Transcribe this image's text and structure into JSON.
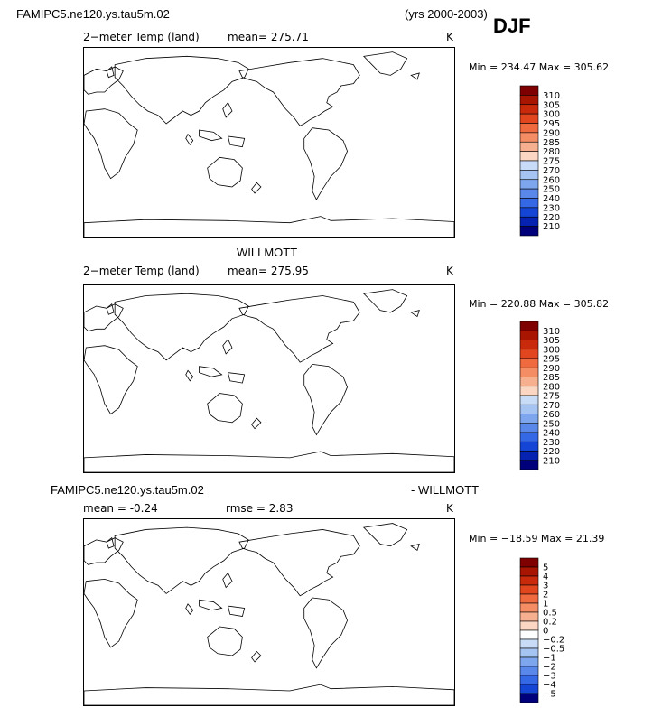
{
  "header": {
    "case_name": "FAMIPC5.ne120.ys.tau5m.02",
    "years": "(yrs 2000-2003)",
    "season": "DJF"
  },
  "panels": [
    {
      "title": "",
      "field_label": "2−meter Temp (land)",
      "stat_text": "mean=  275.71",
      "units": "K",
      "minmax": "Min = 234.47 Max = 305.62"
    },
    {
      "title": "WILLMOTT",
      "field_label": "2−meter Temp (land)",
      "stat_text": "mean=  275.95",
      "units": "K",
      "minmax": "Min = 220.88 Max = 305.82"
    },
    {
      "title_left": "FAMIPC5.ne120.ys.tau5m.02",
      "title_right": "- WILLMOTT",
      "stat_text": "mean =   -0.24",
      "rmse_text": "rmse =    2.83",
      "units": "K",
      "minmax": "Min = −18.59 Max =   21.39"
    }
  ],
  "chart_data": [
    {
      "type": "heatmap",
      "title": "2-meter Temp (land) FAMIPC5.ne120.ys.tau5m.02 DJF",
      "mean": 275.71,
      "min": 234.47,
      "max": 305.62,
      "units": "K",
      "colorbar": {
        "levels": [
          "310",
          "305",
          "300",
          "295",
          "290",
          "285",
          "280",
          "275",
          "270",
          "260",
          "250",
          "240",
          "230",
          "220",
          "210"
        ],
        "colors": [
          "#7f0000",
          "#a81500",
          "#c92a0c",
          "#e2461f",
          "#ef6a3e",
          "#f48c64",
          "#f7b08f",
          "#fbd6c2",
          "#c8dcf7",
          "#a6c4f2",
          "#7ea6ee",
          "#5a88ea",
          "#3468e4",
          "#1445d4",
          "#0522b0",
          "#00007a"
        ]
      }
    },
    {
      "type": "heatmap",
      "title": "2-meter Temp (land) WILLMOTT DJF",
      "mean": 275.95,
      "min": 220.88,
      "max": 305.82,
      "units": "K",
      "colorbar": {
        "levels": [
          "310",
          "305",
          "300",
          "295",
          "290",
          "285",
          "280",
          "275",
          "270",
          "260",
          "250",
          "240",
          "230",
          "220",
          "210"
        ],
        "colors": [
          "#7f0000",
          "#a81500",
          "#c92a0c",
          "#e2461f",
          "#ef6a3e",
          "#f48c64",
          "#f7b08f",
          "#fbd6c2",
          "#c8dcf7",
          "#a6c4f2",
          "#7ea6ee",
          "#5a88ea",
          "#3468e4",
          "#1445d4",
          "#0522b0",
          "#00007a"
        ]
      }
    },
    {
      "type": "heatmap",
      "title": "FAMIPC5.ne120.ys.tau5m.02 - WILLMOTT",
      "mean": -0.24,
      "rmse": 2.83,
      "min": -18.59,
      "max": 21.39,
      "units": "K",
      "colorbar": {
        "levels": [
          "5",
          "4",
          "3",
          "2",
          "1",
          "0.5",
          "0.2",
          "0",
          "−0.2",
          "−0.5",
          "−1",
          "−2",
          "−3",
          "−4",
          "−5"
        ],
        "colors": [
          "#7f0000",
          "#a81500",
          "#c92a0c",
          "#e2461f",
          "#ef6a3e",
          "#f48c64",
          "#f7b08f",
          "#fbd6c2",
          "#ffffff",
          "#c8dcf7",
          "#a6c4f2",
          "#7ea6ee",
          "#5a88ea",
          "#3468e4",
          "#1445d4",
          "#00007a"
        ]
      }
    }
  ]
}
